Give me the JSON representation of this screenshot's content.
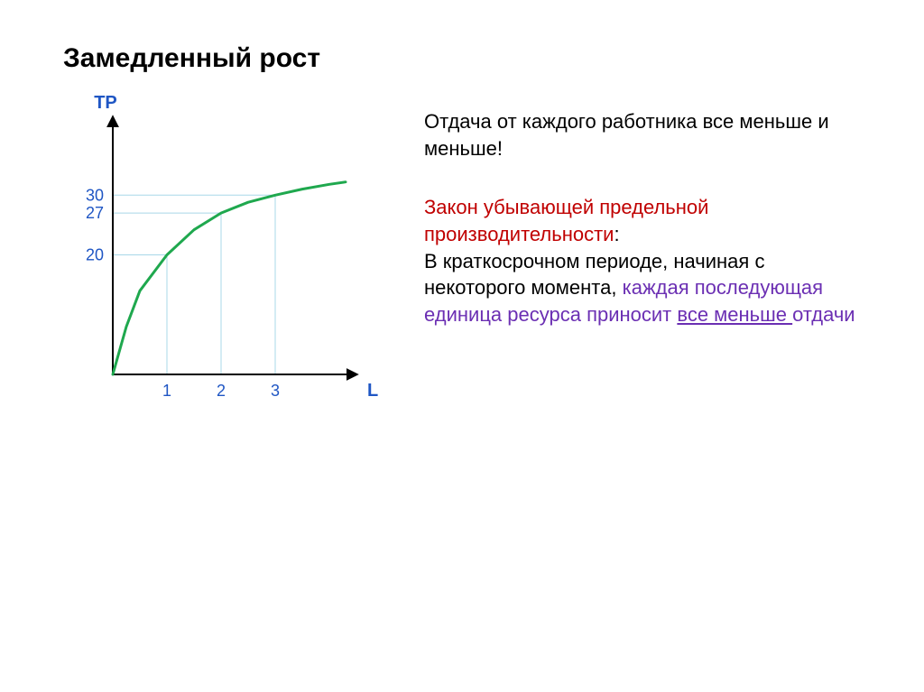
{
  "title": "Замедленный рост",
  "chart": {
    "type": "line",
    "y_axis_label": "TP",
    "x_axis_label": "L",
    "axis_label_color": "#1f56c4",
    "axis_label_fontsize": 20,
    "axis_label_weight": "700",
    "axis_stroke": "#000000",
    "axis_stroke_width": 2,
    "y_ticks": [
      {
        "value": 20,
        "label": "20"
      },
      {
        "value": 27,
        "label": "27"
      },
      {
        "value": 30,
        "label": "30"
      }
    ],
    "x_ticks": [
      {
        "value": 1,
        "label": "1"
      },
      {
        "value": 2,
        "label": "2"
      },
      {
        "value": 3,
        "label": "3"
      }
    ],
    "tick_label_color": "#1f56c4",
    "tick_label_fontsize": 18,
    "x_range": [
      0,
      4.5
    ],
    "y_range": [
      0,
      40
    ],
    "guide_color": "#a8d8e8",
    "guide_width": 1,
    "curve_color": "#1fa84e",
    "curve_width": 3,
    "curve_points": [
      {
        "x": 0.0,
        "y": 0.0
      },
      {
        "x": 0.25,
        "y": 8.0
      },
      {
        "x": 0.5,
        "y": 14.0
      },
      {
        "x": 1.0,
        "y": 20.0
      },
      {
        "x": 1.5,
        "y": 24.2
      },
      {
        "x": 2.0,
        "y": 27.0
      },
      {
        "x": 2.5,
        "y": 28.8
      },
      {
        "x": 3.0,
        "y": 30.0
      },
      {
        "x": 3.5,
        "y": 31.0
      },
      {
        "x": 4.0,
        "y": 31.8
      },
      {
        "x": 4.3,
        "y": 32.2
      }
    ]
  },
  "text": {
    "p1": "Отдача от каждого работника все меньше и меньше!",
    "law_title": "Закон убывающей предельной производительности",
    "p2_part1": "В краткосрочном периоде, начиная с некоторого момента, ",
    "p2_purple_pre": "каждая последующая единица ресурса приносит ",
    "p2_underline": "все меньше ",
    "p2_purple_post": "отдачи"
  }
}
